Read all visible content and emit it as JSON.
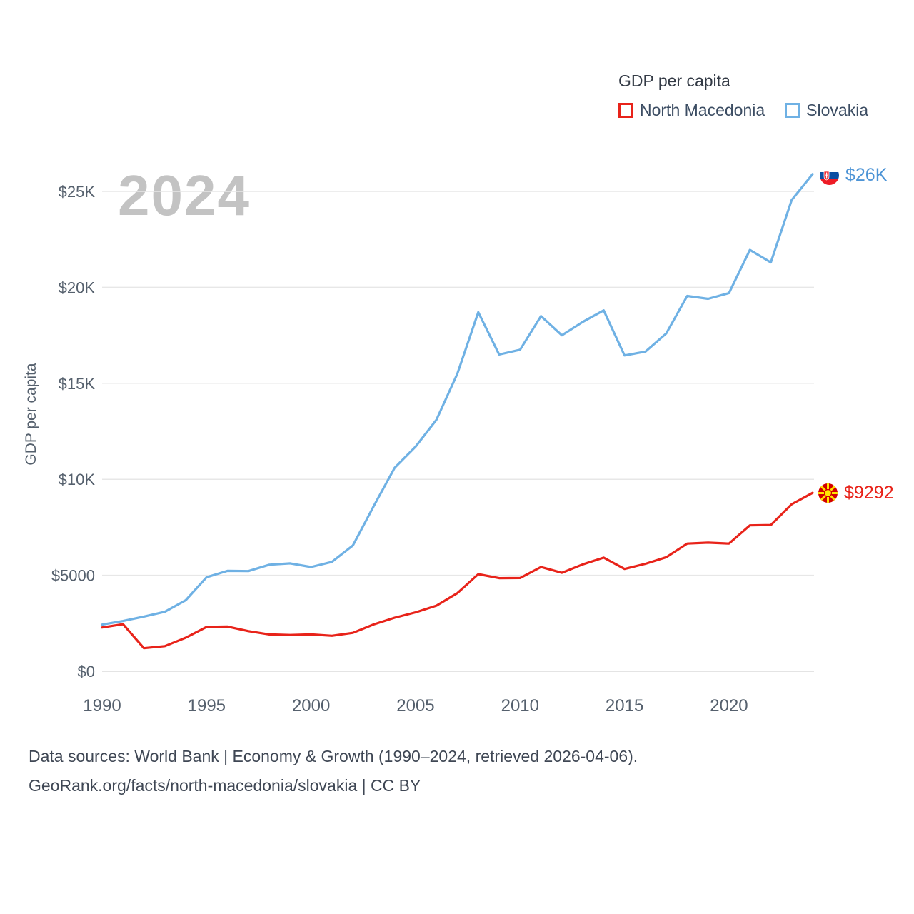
{
  "legend": {
    "title": "GDP per capita",
    "items": [
      {
        "label": "North Macedonia",
        "color": "#e8231a"
      },
      {
        "label": "Slovakia",
        "color": "#6fb1e4"
      }
    ]
  },
  "watermark": "2024",
  "end_labels": {
    "slovakia": {
      "text": "$26K",
      "color": "#4d94d6",
      "flag": "slovakia-flag-icon"
    },
    "north_macedonia": {
      "text": "$9292",
      "color": "#e8231a",
      "flag": "north-macedonia-flag-icon"
    }
  },
  "chart_data": {
    "type": "line",
    "title": "GDP per capita",
    "ylabel": "GDP per capita",
    "xlabel": "",
    "grid": "horizontal",
    "legend_position": "top-right",
    "ylim": [
      0,
      26500
    ],
    "x": [
      1990,
      1991,
      1992,
      1993,
      1994,
      1995,
      1996,
      1997,
      1998,
      1999,
      2000,
      2001,
      2002,
      2003,
      2004,
      2005,
      2006,
      2007,
      2008,
      2009,
      2010,
      2011,
      2012,
      2013,
      2014,
      2015,
      2016,
      2017,
      2018,
      2019,
      2020,
      2021,
      2022,
      2023,
      2024
    ],
    "xticks": [
      1990,
      1995,
      2000,
      2005,
      2010,
      2015,
      2020
    ],
    "yticks": [
      {
        "value": 0,
        "label": "$0"
      },
      {
        "value": 5000,
        "label": "$5000"
      },
      {
        "value": 10000,
        "label": "$10K"
      },
      {
        "value": 15000,
        "label": "$15K"
      },
      {
        "value": 20000,
        "label": "$20K"
      },
      {
        "value": 25000,
        "label": "$25K"
      }
    ],
    "series": [
      {
        "name": "Slovakia",
        "color": "#6fb1e4",
        "values": [
          2430,
          2620,
          2850,
          3100,
          3700,
          4900,
          5230,
          5220,
          5550,
          5620,
          5430,
          5700,
          6550,
          8600,
          10600,
          11700,
          13100,
          15500,
          18700,
          16500,
          16750,
          18500,
          17500,
          18200,
          18800,
          16450,
          16650,
          17600,
          19550,
          19400,
          19700,
          21950,
          21300,
          24550,
          25900
        ]
      },
      {
        "name": "North Macedonia",
        "color": "#e8231a",
        "values": [
          2280,
          2450,
          1200,
          1310,
          1750,
          2310,
          2330,
          2090,
          1920,
          1890,
          1920,
          1850,
          2000,
          2440,
          2790,
          3070,
          3420,
          4070,
          5060,
          4850,
          4860,
          5430,
          5130,
          5570,
          5920,
          5330,
          5600,
          5940,
          6650,
          6700,
          6650,
          7600,
          7620,
          8700,
          9292
        ]
      }
    ]
  },
  "footer": {
    "line1": "Data sources: World Bank | Economy & Growth (1990–2024, retrieved 2026-04-06).",
    "line2": "GeoRank.org/facts/north-macedonia/slovakia | CC BY"
  }
}
